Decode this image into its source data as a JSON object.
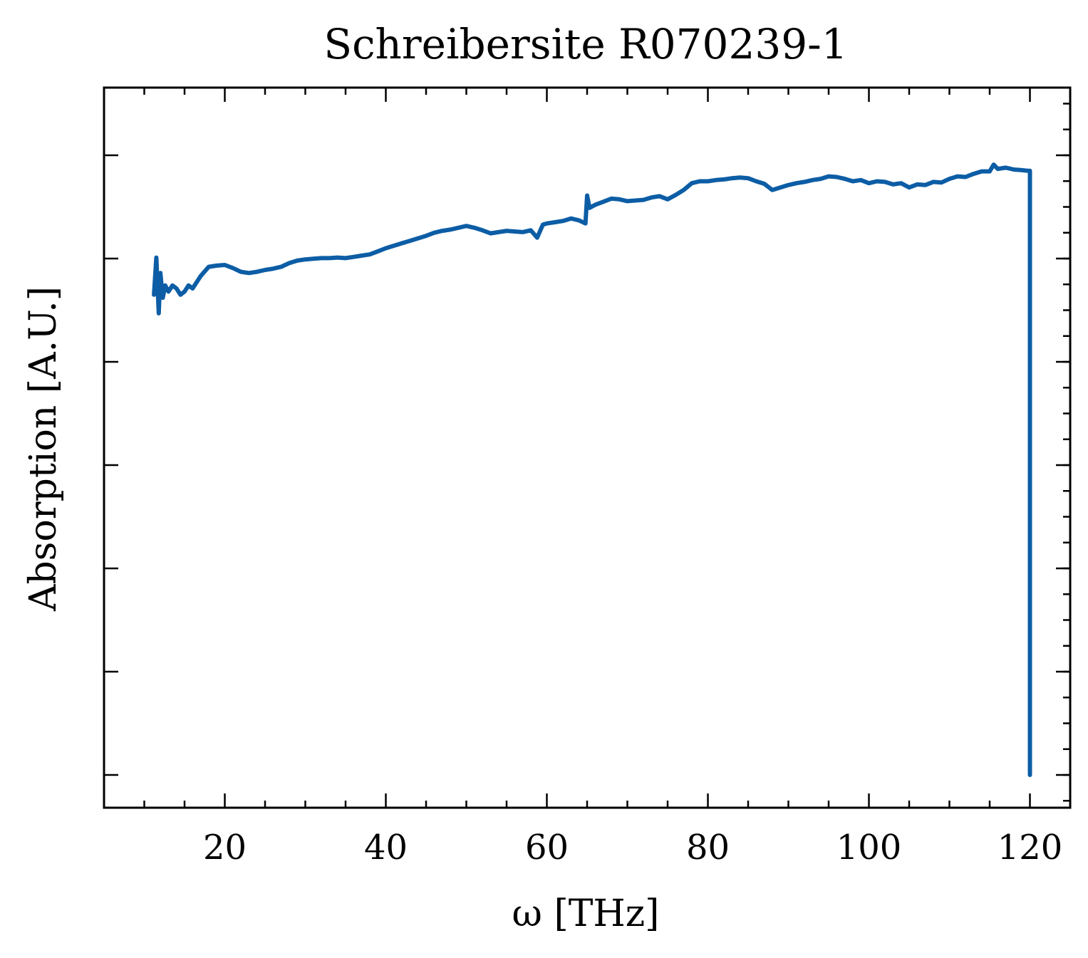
{
  "chart_data": {
    "type": "line",
    "title": "Schreibersite R070239-1",
    "xlabel": "ω [THz]",
    "ylabel": "Absorption [A.U.]",
    "xlim": [
      5,
      125
    ],
    "ylim": [
      -0.0,
      1.0
    ],
    "x_ticks": [
      "20",
      "40",
      "60",
      "80",
      "100",
      "120"
    ],
    "x_tick_values": [
      20,
      40,
      60,
      80,
      100,
      120
    ],
    "y_major_ticks_shown_without_labels": 7,
    "y_tick_labels_visible": false,
    "grid": false,
    "legend": "none",
    "line_color": "#0C5DA5",
    "series": [
      {
        "x": [
          11.2,
          11.5,
          11.8,
          12.0,
          12.3,
          12.6,
          13.0,
          13.5,
          14.0,
          14.5,
          15.0,
          15.5,
          16.0,
          17.0,
          18.0,
          19.0,
          20.0,
          21.0,
          22.0,
          23.0,
          24.0,
          25.0,
          26.0,
          27.0,
          28.0,
          29.0,
          30.0,
          31.0,
          32.0,
          33.0,
          34.0,
          35.0,
          36.0,
          37.0,
          38.0,
          39.0,
          40.0,
          41.0,
          42.0,
          43.0,
          44.0,
          45.0,
          46.0,
          47.0,
          48.0,
          49.0,
          50.0,
          51.0,
          52.0,
          53.0,
          54.0,
          55.0,
          56.0,
          57.0,
          58.0,
          58.8,
          59.5,
          60.0,
          61.0,
          62.0,
          63.0,
          64.0,
          64.8,
          65.0,
          65.3,
          66.0,
          67.0,
          68.0,
          69.0,
          70.0,
          71.0,
          72.0,
          73.0,
          74.0,
          75.0,
          76.0,
          77.0,
          78.0,
          79.0,
          80.0,
          81.0,
          82.0,
          83.0,
          84.0,
          85.0,
          86.0,
          87.0,
          88.0,
          89.0,
          90.0,
          91.0,
          92.0,
          93.0,
          94.0,
          95.0,
          96.0,
          97.0,
          98.0,
          99.0,
          100.0,
          101.0,
          102.0,
          103.0,
          104.0,
          105.0,
          106.0,
          107.0,
          108.0,
          109.0,
          110.0,
          111.0,
          112.0,
          113.0,
          114.0,
          115.0,
          115.5,
          116.0,
          117.0,
          118.0,
          119.0,
          119.8,
          120.0,
          120.0
        ],
        "y": [
          0.775,
          0.835,
          0.745,
          0.81,
          0.77,
          0.79,
          0.78,
          0.79,
          0.785,
          0.775,
          0.78,
          0.79,
          0.785,
          0.805,
          0.82,
          0.822,
          0.823,
          0.818,
          0.812,
          0.81,
          0.812,
          0.815,
          0.817,
          0.82,
          0.826,
          0.83,
          0.832,
          0.833,
          0.834,
          0.834,
          0.835,
          0.834,
          0.836,
          0.838,
          0.84,
          0.845,
          0.85,
          0.854,
          0.858,
          0.862,
          0.866,
          0.87,
          0.875,
          0.878,
          0.88,
          0.883,
          0.886,
          0.883,
          0.879,
          0.874,
          0.876,
          0.878,
          0.877,
          0.876,
          0.879,
          0.867,
          0.888,
          0.89,
          0.892,
          0.894,
          0.898,
          0.895,
          0.89,
          0.935,
          0.915,
          0.92,
          0.925,
          0.93,
          0.929,
          0.926,
          0.927,
          0.928,
          0.932,
          0.934,
          0.929,
          0.936,
          0.944,
          0.955,
          0.958,
          0.958,
          0.96,
          0.961,
          0.963,
          0.964,
          0.963,
          0.958,
          0.954,
          0.944,
          0.948,
          0.952,
          0.955,
          0.957,
          0.96,
          0.962,
          0.966,
          0.965,
          0.962,
          0.958,
          0.96,
          0.955,
          0.958,
          0.957,
          0.953,
          0.955,
          0.948,
          0.953,
          0.952,
          0.957,
          0.956,
          0.962,
          0.966,
          0.965,
          0.97,
          0.974,
          0.974,
          0.985,
          0.978,
          0.98,
          0.977,
          0.976,
          0.975,
          0.975,
          0.0
        ]
      }
    ]
  }
}
